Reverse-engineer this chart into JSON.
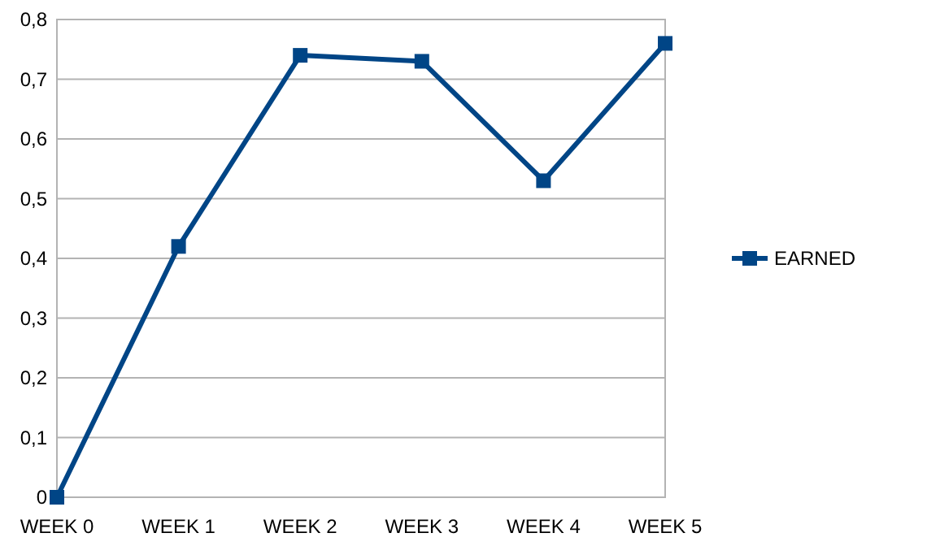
{
  "chart_data": {
    "type": "line",
    "categories": [
      "WEEK 0",
      "WEEK 1",
      "WEEK 2",
      "WEEK 3",
      "WEEK 4",
      "WEEK 5"
    ],
    "series": [
      {
        "name": "EARNED",
        "color": "#004586",
        "values": [
          0,
          0.42,
          0.74,
          0.73,
          0.53,
          0.76
        ]
      }
    ],
    "ylim": [
      0,
      0.8
    ],
    "yticks": [
      0,
      {
        "value": 0.1,
        "label": "0,1"
      },
      {
        "value": 0.2,
        "label": "0,2"
      },
      {
        "value": 0.3,
        "label": "0,3"
      },
      {
        "value": 0.4,
        "label": "0,4"
      },
      {
        "value": 0.5,
        "label": "0,5"
      },
      {
        "value": 0.6,
        "label": "0,6"
      },
      {
        "value": 0.7,
        "label": "0,7"
      },
      {
        "value": 0.8,
        "label": "0,8"
      }
    ],
    "grid": "y",
    "legend": "right",
    "marker": "square",
    "line_style": "solid"
  }
}
